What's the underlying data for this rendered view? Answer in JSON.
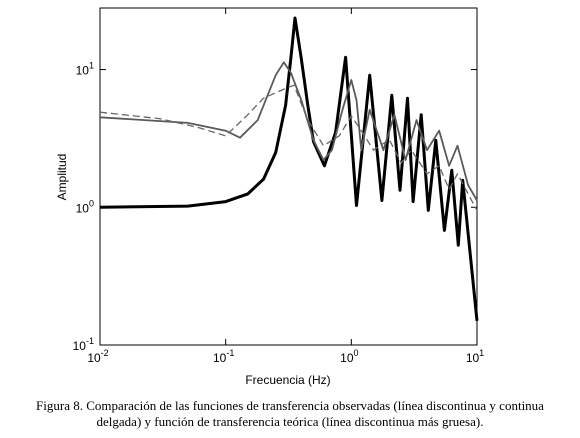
{
  "chart_data": {
    "type": "line",
    "log_x": true,
    "log_y": true,
    "x_label": "Frecuencia (Hz)",
    "y_label": "Amplitud",
    "caption": [
      "Figura 8. Comparación de las funciones de transferencia observadas (línea discontinua y continua",
      "delgada) y función de transferencia teórica (línea discontinua más gruesa)."
    ],
    "xlim": [
      0.01,
      10
    ],
    "ylim": [
      0.1,
      28
    ],
    "xticks": [
      {
        "value": 0.01,
        "label": "10",
        "exponent": "-2"
      },
      {
        "value": 0.1,
        "label": "10",
        "exponent": "-1"
      },
      {
        "value": 1,
        "label": "10",
        "exponent": "0"
      },
      {
        "value": 10,
        "label": "10",
        "exponent": "1"
      }
    ],
    "yticks": [
      {
        "value": 0.1,
        "label": "10",
        "exponent": "-1"
      },
      {
        "value": 1,
        "label": "10",
        "exponent": "0"
      },
      {
        "value": 10,
        "label": "10",
        "exponent": "1"
      }
    ],
    "series": [
      {
        "color": "#000000",
        "width": 3,
        "dash": "none",
        "x": [
          0.01,
          0.05,
          0.1,
          0.15,
          0.2,
          0.25,
          0.3,
          0.33,
          0.356,
          0.4,
          0.45,
          0.5,
          0.61,
          0.75,
          0.9,
          1.1,
          1.4,
          1.75,
          2.1,
          2.44,
          2.8,
          3.1,
          3.6,
          4.1,
          4.7,
          5.5,
          6.3,
          7.1,
          7.7,
          10
        ],
        "values": [
          1.0,
          1.02,
          1.1,
          1.25,
          1.6,
          2.5,
          5.5,
          12,
          23.7,
          12,
          5.5,
          3.0,
          2.0,
          3.5,
          12.3,
          1.03,
          9.1,
          1.12,
          6.5,
          1.33,
          6.2,
          1.1,
          4.7,
          0.95,
          3.07,
          0.68,
          1.86,
          0.53,
          1.57,
          0.15
        ]
      },
      {
        "color": "#5a5a5a",
        "width": 1.8,
        "dash": "none",
        "x": [
          0.01,
          0.05,
          0.1,
          0.13,
          0.18,
          0.25,
          0.29,
          0.33,
          0.4,
          0.5,
          0.6,
          0.7,
          0.85,
          1.0,
          1.1,
          1.2,
          1.4,
          1.8,
          2.2,
          2.7,
          3.3,
          4.0,
          5,
          6,
          7,
          8.5,
          10
        ],
        "values": [
          4.5,
          4.1,
          3.6,
          3.2,
          4.3,
          9.1,
          11.3,
          9.5,
          6.0,
          3.07,
          2.2,
          2.6,
          5.1,
          8.4,
          6.0,
          2.6,
          5.1,
          2.6,
          4.7,
          2.2,
          4.3,
          2.6,
          3.6,
          2.0,
          2.8,
          1.45,
          1.12
        ]
      },
      {
        "color": "#666666",
        "width": 1.3,
        "dash": "7,4",
        "x": [
          0.01,
          0.03,
          0.06,
          0.1,
          0.15,
          0.2,
          0.3,
          0.35,
          0.45,
          0.6,
          0.8,
          1.0,
          1.2,
          1.5,
          2,
          2.5,
          3,
          4,
          5,
          6,
          7,
          8.5,
          10
        ],
        "values": [
          4.9,
          4.4,
          3.8,
          3.3,
          4.7,
          6.2,
          7.3,
          7.7,
          4.3,
          2.8,
          3.3,
          4.6,
          3.6,
          2.6,
          3.1,
          2.1,
          2.6,
          1.75,
          2.0,
          1.35,
          1.75,
          1.25,
          0.95
        ]
      }
    ]
  }
}
